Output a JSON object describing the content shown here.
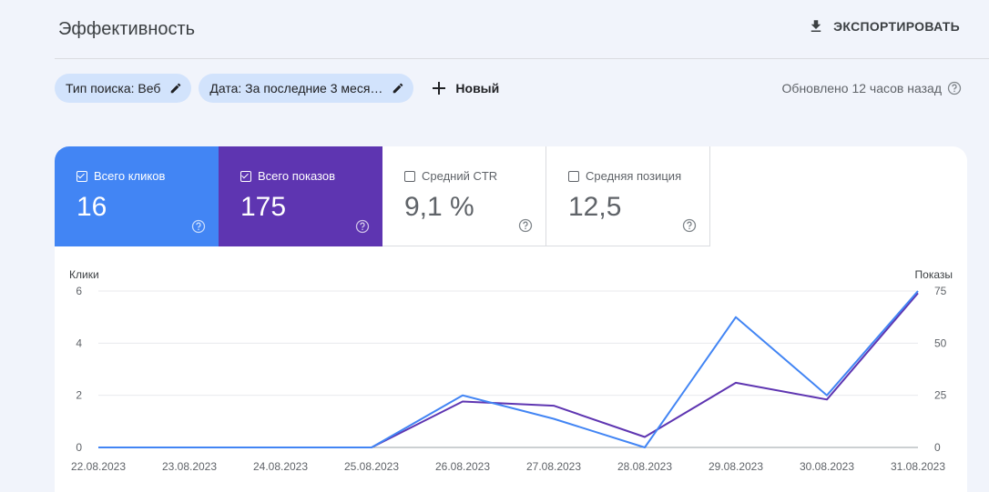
{
  "header": {
    "title": "Эффективность",
    "export_label": "ЭКСПОРТИРОВАТЬ"
  },
  "filters": {
    "chips": [
      {
        "label": "Тип поиска: Веб"
      },
      {
        "label": "Дата: За последние 3 меся…"
      }
    ],
    "new_label": "Новый",
    "updated_text": "Обновлено 12 часов назад"
  },
  "metrics": [
    {
      "label": "Всего кликов",
      "value": "16",
      "checked": true
    },
    {
      "label": "Всего показов",
      "value": "175",
      "checked": true
    },
    {
      "label": "Средний CTR",
      "value": "9,1 %",
      "checked": false
    },
    {
      "label": "Средняя позиция",
      "value": "12,5",
      "checked": false
    }
  ],
  "colors": {
    "clicks": "#4285f4",
    "impressions": "#5e35b1",
    "chip_bg": "#d2e3fc",
    "page_bg": "#f1f4fb"
  },
  "chart_data": {
    "type": "line",
    "x": [
      "22.08.2023",
      "23.08.2023",
      "24.08.2023",
      "25.08.2023",
      "26.08.2023",
      "27.08.2023",
      "28.08.2023",
      "29.08.2023",
      "30.08.2023",
      "31.08.2023"
    ],
    "series": [
      {
        "name": "Клики",
        "axis": "left",
        "color": "#4285f4",
        "values": [
          0,
          0,
          0,
          0,
          2,
          1.1,
          0,
          5,
          2,
          6
        ]
      },
      {
        "name": "Показы",
        "axis": "right",
        "color": "#5e35b1",
        "values": [
          0,
          0,
          0,
          0,
          22,
          20,
          5,
          31,
          23,
          74
        ]
      }
    ],
    "ylabel_left": "Клики",
    "ylabel_right": "Показы",
    "ylim_left": [
      0,
      6
    ],
    "ylim_right": [
      0,
      75
    ],
    "yticks_left": [
      "0",
      "2",
      "4",
      "6"
    ],
    "yticks_right": [
      "0",
      "25",
      "50",
      "75"
    ],
    "grid": true
  }
}
